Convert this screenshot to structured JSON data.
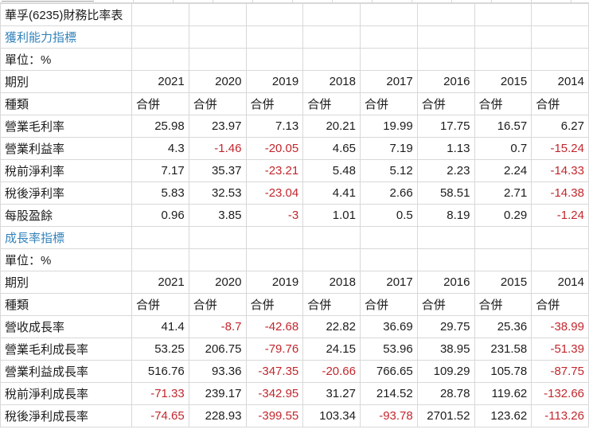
{
  "table": {
    "title": "華孚(6235)財務比率表",
    "period_label": "期別",
    "type_label": "種類",
    "years": [
      "2021",
      "2020",
      "2019",
      "2018",
      "2017",
      "2016",
      "2015",
      "2014"
    ],
    "type_value": "合併",
    "colors": {
      "negative_value": "#c2272d",
      "section_link": "#3383bb",
      "text": "#1c1c1c",
      "grid_line": "#d8d8d8"
    },
    "sections": [
      {
        "id": "profitability",
        "header": "獲利能力指標",
        "unit": "單位：%",
        "rows": [
          {
            "label": "營業毛利率",
            "values": [
              "25.98",
              "23.97",
              "7.13",
              "20.21",
              "19.99",
              "17.75",
              "16.57",
              "6.27"
            ]
          },
          {
            "label": "營業利益率",
            "values": [
              "4.3",
              "-1.46",
              "-20.05",
              "4.65",
              "7.19",
              "1.13",
              "0.7",
              "-15.24"
            ]
          },
          {
            "label": "稅前淨利率",
            "values": [
              "7.17",
              "35.37",
              "-23.21",
              "5.48",
              "5.12",
              "2.23",
              "2.24",
              "-14.33"
            ]
          },
          {
            "label": "稅後淨利率",
            "values": [
              "5.83",
              "32.53",
              "-23.04",
              "4.41",
              "2.66",
              "58.51",
              "2.71",
              "-14.38"
            ]
          },
          {
            "label": "每股盈餘",
            "values": [
              "0.96",
              "3.85",
              "-3",
              "1.01",
              "0.5",
              "8.19",
              "0.29",
              "-1.24"
            ]
          }
        ]
      },
      {
        "id": "growth",
        "header": "成長率指標",
        "unit": "單位：%",
        "rows": [
          {
            "label": "營收成長率",
            "values": [
              "41.4",
              "-8.7",
              "-42.68",
              "22.82",
              "36.69",
              "29.75",
              "25.36",
              "-38.99"
            ]
          },
          {
            "label": "營業毛利成長率",
            "values": [
              "53.25",
              "206.75",
              "-79.76",
              "24.15",
              "53.96",
              "38.95",
              "231.58",
              "-51.39"
            ]
          },
          {
            "label": "營業利益成長率",
            "values": [
              "516.76",
              "93.36",
              "-347.35",
              "-20.66",
              "766.65",
              "109.29",
              "105.78",
              "-87.75"
            ]
          },
          {
            "label": "稅前淨利成長率",
            "values": [
              "-71.33",
              "239.17",
              "-342.95",
              "31.27",
              "214.52",
              "28.78",
              "119.62",
              "-132.66"
            ]
          },
          {
            "label": "稅後淨利成長率",
            "values": [
              "-74.65",
              "228.93",
              "-399.55",
              "103.34",
              "-93.78",
              "2701.52",
              "123.62",
              "-113.26"
            ]
          }
        ]
      }
    ]
  }
}
